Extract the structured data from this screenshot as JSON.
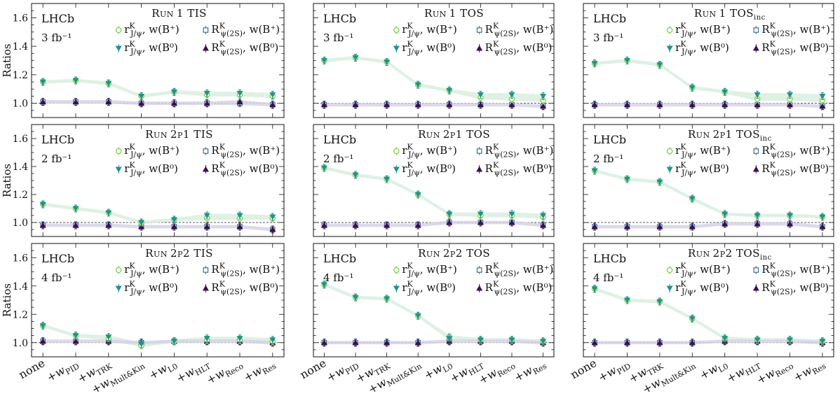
{
  "figure": {
    "ylabel": "Ratios",
    "experiment": "LHCb",
    "xtick_labels": [
      "none",
      "+w_PID",
      "+w_TRK",
      "+w_Mult&Kin",
      "+w_L0",
      "+w_HLT",
      "+w_Reco",
      "+w_Res"
    ],
    "legend": [
      {
        "key": "rJpsi_Bp",
        "label": "r^K_{J/ψ}, w(B⁺)",
        "marker": "open-circle",
        "color": "#7ed04b"
      },
      {
        "key": "Rpsi2S_Bp",
        "label": "R^K_{ψ(2S)}, w(B⁺)",
        "marker": "open-square",
        "color": "#3b6e93"
      },
      {
        "key": "rJpsi_B0",
        "label": "r^K_{J/ψ}, w(B⁰)",
        "marker": "triangle-down",
        "color": "#21918c"
      },
      {
        "key": "Rpsi2S_B0",
        "label": "R^K_{ψ(2S)}, w(B⁰)",
        "marker": "triangle-up",
        "color": "#3b0f4f"
      }
    ],
    "colors": {
      "green": "#7ed04b",
      "teal": "#21918c",
      "blue": "#3b6e93",
      "purple": "#3b0f4f",
      "band_green": "#d8efdf",
      "band_purple": "#d6d2e8"
    }
  },
  "chart_data": [
    {
      "type": "line",
      "title": "Run 1 TIS",
      "lumi": "3 fb⁻¹",
      "ylim": [
        0.9,
        1.7
      ],
      "yticks": [
        1.0,
        1.2,
        1.4,
        1.6
      ],
      "series": [
        {
          "key": "rJpsi_Bp",
          "values": [
            1.15,
            1.16,
            1.14,
            1.05,
            1.08,
            1.06,
            1.06,
            1.05
          ]
        },
        {
          "key": "rJpsi_B0",
          "values": [
            1.15,
            1.16,
            1.14,
            1.05,
            1.08,
            1.07,
            1.07,
            1.06
          ]
        },
        {
          "key": "Rpsi2S_Bp",
          "values": [
            1.01,
            1.01,
            1.01,
            1.0,
            1.0,
            1.0,
            1.0,
            0.99
          ]
        },
        {
          "key": "Rpsi2S_B0",
          "values": [
            1.01,
            1.01,
            1.01,
            1.0,
            1.0,
            1.0,
            1.01,
            0.99
          ]
        }
      ]
    },
    {
      "type": "line",
      "title": "Run 1 TOS",
      "lumi": "3 fb⁻¹",
      "ylim": [
        0.9,
        1.7
      ],
      "yticks": [
        1.0,
        1.2,
        1.4,
        1.6
      ],
      "series": [
        {
          "key": "rJpsi_Bp",
          "values": [
            1.3,
            1.32,
            1.29,
            1.13,
            1.09,
            1.04,
            1.03,
            1.02
          ]
        },
        {
          "key": "rJpsi_B0",
          "values": [
            1.3,
            1.32,
            1.29,
            1.13,
            1.09,
            1.06,
            1.06,
            1.05
          ]
        },
        {
          "key": "Rpsi2S_Bp",
          "values": [
            0.99,
            0.99,
            0.99,
            0.99,
            0.99,
            0.99,
            0.99,
            0.98
          ]
        },
        {
          "key": "Rpsi2S_B0",
          "values": [
            0.99,
            0.99,
            0.99,
            0.99,
            0.99,
            0.99,
            0.99,
            0.98
          ]
        }
      ]
    },
    {
      "type": "line",
      "title": "Run 1 TOS_inc",
      "lumi": "3 fb⁻¹",
      "ylim": [
        0.9,
        1.7
      ],
      "yticks": [
        1.0,
        1.2,
        1.4,
        1.6
      ],
      "series": [
        {
          "key": "rJpsi_Bp",
          "values": [
            1.28,
            1.3,
            1.27,
            1.11,
            1.08,
            1.03,
            1.03,
            1.02
          ]
        },
        {
          "key": "rJpsi_B0",
          "values": [
            1.28,
            1.3,
            1.27,
            1.11,
            1.08,
            1.06,
            1.06,
            1.05
          ]
        },
        {
          "key": "Rpsi2S_Bp",
          "values": [
            0.99,
            0.99,
            0.99,
            0.99,
            0.99,
            0.99,
            0.99,
            0.98
          ]
        },
        {
          "key": "Rpsi2S_B0",
          "values": [
            0.99,
            0.99,
            0.99,
            0.99,
            0.99,
            0.99,
            0.99,
            0.98
          ]
        }
      ]
    },
    {
      "type": "line",
      "title": "Run 2p1 TIS",
      "lumi": "2 fb⁻¹",
      "ylim": [
        0.9,
        1.7
      ],
      "yticks": [
        1.0,
        1.2,
        1.4,
        1.6
      ],
      "series": [
        {
          "key": "rJpsi_Bp",
          "values": [
            1.13,
            1.1,
            1.07,
            1.0,
            1.02,
            1.03,
            1.03,
            1.03
          ]
        },
        {
          "key": "rJpsi_B0",
          "values": [
            1.13,
            1.1,
            1.07,
            1.0,
            1.02,
            1.05,
            1.05,
            1.04
          ]
        },
        {
          "key": "Rpsi2S_Bp",
          "values": [
            0.98,
            0.98,
            0.98,
            0.97,
            0.97,
            0.97,
            0.97,
            0.95
          ]
        },
        {
          "key": "Rpsi2S_B0",
          "values": [
            0.98,
            0.98,
            0.98,
            0.97,
            0.97,
            0.97,
            0.97,
            0.95
          ]
        }
      ]
    },
    {
      "type": "line",
      "title": "Run 2p1 TOS",
      "lumi": "2 fb⁻¹",
      "ylim": [
        0.9,
        1.7
      ],
      "yticks": [
        1.0,
        1.2,
        1.4,
        1.6
      ],
      "series": [
        {
          "key": "rJpsi_Bp",
          "values": [
            1.39,
            1.34,
            1.31,
            1.2,
            1.06,
            1.05,
            1.05,
            1.04
          ]
        },
        {
          "key": "rJpsi_B0",
          "values": [
            1.39,
            1.34,
            1.31,
            1.2,
            1.06,
            1.06,
            1.06,
            1.05
          ]
        },
        {
          "key": "Rpsi2S_Bp",
          "values": [
            0.98,
            0.98,
            0.98,
            0.98,
            1.0,
            1.0,
            1.0,
            0.98
          ]
        },
        {
          "key": "Rpsi2S_B0",
          "values": [
            0.98,
            0.98,
            0.98,
            0.98,
            1.0,
            1.0,
            1.0,
            0.98
          ]
        }
      ]
    },
    {
      "type": "line",
      "title": "Run 2p1 TOS_inc",
      "lumi": "2 fb⁻¹",
      "ylim": [
        0.9,
        1.7
      ],
      "yticks": [
        1.0,
        1.2,
        1.4,
        1.6
      ],
      "series": [
        {
          "key": "rJpsi_Bp",
          "values": [
            1.37,
            1.31,
            1.29,
            1.17,
            1.06,
            1.05,
            1.05,
            1.04
          ]
        },
        {
          "key": "rJpsi_B0",
          "values": [
            1.37,
            1.31,
            1.29,
            1.17,
            1.06,
            1.05,
            1.05,
            1.04
          ]
        },
        {
          "key": "Rpsi2S_Bp",
          "values": [
            0.97,
            0.97,
            0.97,
            0.97,
            0.99,
            0.99,
            0.99,
            0.97
          ]
        },
        {
          "key": "Rpsi2S_B0",
          "values": [
            0.97,
            0.97,
            0.97,
            0.97,
            0.99,
            0.99,
            0.99,
            0.97
          ]
        }
      ]
    },
    {
      "type": "line",
      "title": "Run 2p2 TIS",
      "lumi": "4 fb⁻¹",
      "ylim": [
        0.9,
        1.7
      ],
      "yticks": [
        1.0,
        1.2,
        1.4,
        1.6
      ],
      "series": [
        {
          "key": "rJpsi_Bp",
          "values": [
            1.12,
            1.05,
            1.03,
            0.98,
            1.01,
            1.02,
            1.02,
            1.01
          ]
        },
        {
          "key": "rJpsi_B0",
          "values": [
            1.12,
            1.05,
            1.04,
            0.99,
            1.01,
            1.03,
            1.03,
            1.02
          ]
        },
        {
          "key": "Rpsi2S_Bp",
          "values": [
            1.01,
            1.01,
            1.01,
            1.0,
            1.01,
            1.01,
            1.01,
            1.0
          ]
        },
        {
          "key": "Rpsi2S_B0",
          "values": [
            1.01,
            1.01,
            1.01,
            1.0,
            1.01,
            1.01,
            1.01,
            1.0
          ]
        }
      ]
    },
    {
      "type": "line",
      "title": "Run 2p2 TOS",
      "lumi": "4 fb⁻¹",
      "ylim": [
        0.9,
        1.7
      ],
      "yticks": [
        1.0,
        1.2,
        1.4,
        1.6
      ],
      "series": [
        {
          "key": "rJpsi_Bp",
          "values": [
            1.41,
            1.32,
            1.31,
            1.19,
            1.04,
            1.02,
            1.02,
            1.01
          ]
        },
        {
          "key": "rJpsi_B0",
          "values": [
            1.41,
            1.32,
            1.31,
            1.19,
            1.03,
            1.02,
            1.02,
            1.01
          ]
        },
        {
          "key": "Rpsi2S_Bp",
          "values": [
            1.0,
            1.0,
            1.0,
            1.0,
            1.01,
            1.01,
            1.01,
            1.0
          ]
        },
        {
          "key": "Rpsi2S_B0",
          "values": [
            1.0,
            1.0,
            1.0,
            1.0,
            1.01,
            1.01,
            1.01,
            1.0
          ]
        }
      ]
    },
    {
      "type": "line",
      "title": "Run 2p2 TOS_inc",
      "lumi": "4 fb⁻¹",
      "ylim": [
        0.9,
        1.7
      ],
      "yticks": [
        1.0,
        1.2,
        1.4,
        1.6
      ],
      "series": [
        {
          "key": "rJpsi_Bp",
          "values": [
            1.38,
            1.3,
            1.29,
            1.17,
            1.03,
            1.02,
            1.02,
            1.01
          ]
        },
        {
          "key": "rJpsi_B0",
          "values": [
            1.38,
            1.3,
            1.29,
            1.17,
            1.03,
            1.02,
            1.02,
            1.01
          ]
        },
        {
          "key": "Rpsi2S_Bp",
          "values": [
            1.0,
            1.0,
            1.0,
            1.0,
            1.01,
            1.01,
            1.01,
            1.0
          ]
        },
        {
          "key": "Rpsi2S_B0",
          "values": [
            1.0,
            1.0,
            1.0,
            1.0,
            1.01,
            1.01,
            1.01,
            1.0
          ]
        }
      ]
    }
  ]
}
